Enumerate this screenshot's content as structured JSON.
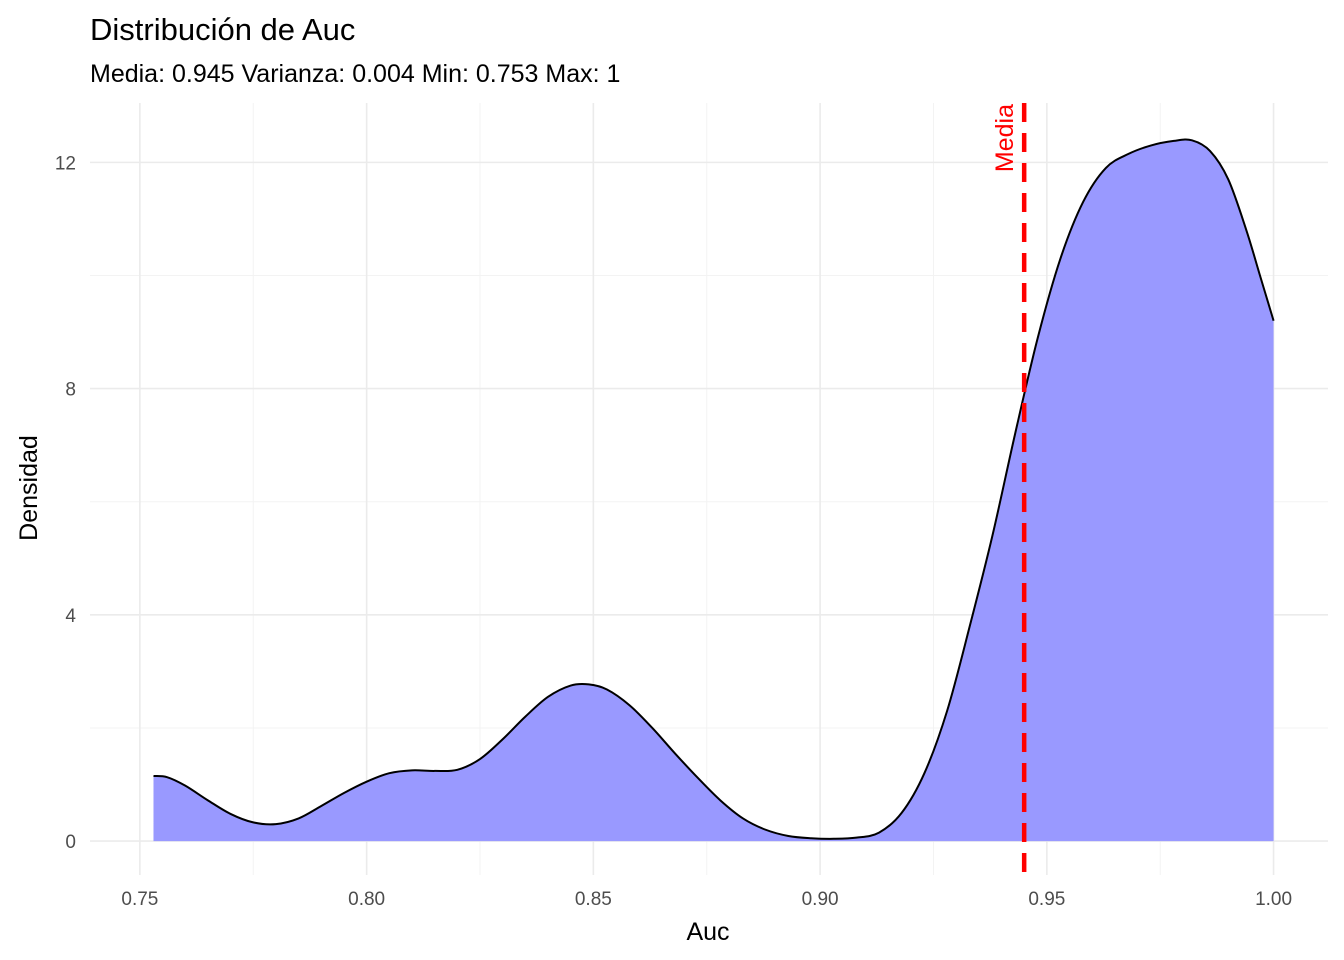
{
  "chart_data": {
    "type": "area",
    "title": "Distribución de Auc",
    "subtitle": "Media: 0.945 Varianza: 0.004 Min: 0.753 Max: 1",
    "xlabel": "Auc",
    "ylabel": "Densidad",
    "xlim": [
      0.739,
      1.012
    ],
    "ylim": [
      -0.6,
      13.05
    ],
    "x_ticks": [
      0.75,
      0.8,
      0.85,
      0.9,
      0.95,
      1.0
    ],
    "x_tick_labels": [
      "0.75",
      "0.80",
      "0.85",
      "0.90",
      "0.95",
      "1.00"
    ],
    "y_ticks": [
      0,
      4,
      8,
      12
    ],
    "y_tick_labels": [
      "0",
      "4",
      "8",
      "12"
    ],
    "grid": true,
    "legend": "none",
    "fill_color": "#9999ff",
    "line_color": "#000000",
    "mean_line": {
      "x": 0.945,
      "label": "Media",
      "color": "#ff0000",
      "style": "dashed"
    },
    "series": [
      {
        "x": [
          0.753,
          0.756,
          0.76,
          0.765,
          0.77,
          0.775,
          0.78,
          0.785,
          0.79,
          0.795,
          0.8,
          0.805,
          0.81,
          0.815,
          0.82,
          0.825,
          0.83,
          0.835,
          0.84,
          0.845,
          0.849,
          0.853,
          0.858,
          0.863,
          0.868,
          0.873,
          0.878,
          0.883,
          0.888,
          0.893,
          0.898,
          0.903,
          0.908,
          0.913,
          0.918,
          0.923,
          0.928,
          0.933,
          0.938,
          0.943,
          0.948,
          0.953,
          0.958,
          0.963,
          0.968,
          0.973,
          0.978,
          0.982,
          0.986,
          0.99,
          0.994,
          0.997,
          1.0
        ],
        "y": [
          1.15,
          1.13,
          0.98,
          0.72,
          0.48,
          0.33,
          0.3,
          0.4,
          0.62,
          0.85,
          1.05,
          1.2,
          1.25,
          1.24,
          1.26,
          1.45,
          1.8,
          2.2,
          2.55,
          2.75,
          2.77,
          2.68,
          2.4,
          2.0,
          1.55,
          1.12,
          0.72,
          0.4,
          0.2,
          0.09,
          0.05,
          0.04,
          0.06,
          0.15,
          0.5,
          1.2,
          2.3,
          3.8,
          5.4,
          7.2,
          8.9,
          10.3,
          11.3,
          11.9,
          12.15,
          12.3,
          12.38,
          12.39,
          12.2,
          11.7,
          10.8,
          10.0,
          9.2
        ]
      }
    ]
  }
}
